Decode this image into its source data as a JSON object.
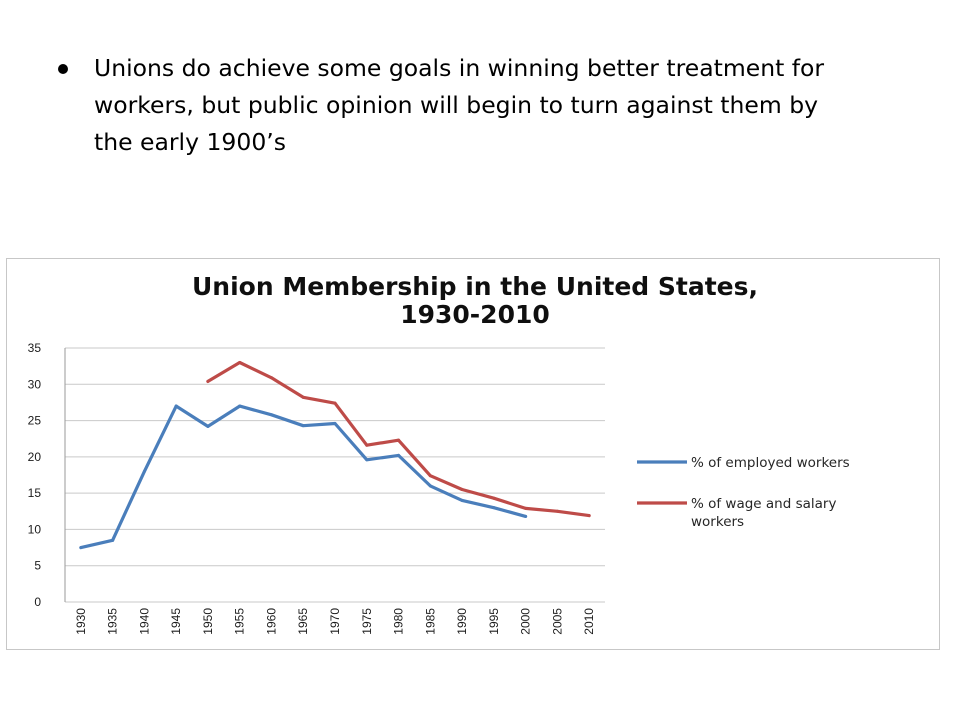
{
  "slide": {
    "bullet_text": "Unions do achieve some goals in winning better treatment for workers, but public opinion will begin to turn against them by the early 1900’s"
  },
  "chart_data": {
    "type": "line",
    "title_line1": "Union Membership in the United States,",
    "title_line2": "1930-2010",
    "xlabel": "",
    "ylabel": "",
    "ylim": [
      0,
      35
    ],
    "yticks": [
      "0",
      "5",
      "10",
      "15",
      "20",
      "25",
      "30",
      "35"
    ],
    "categories": [
      "1930",
      "1935",
      "1940",
      "1945",
      "1950",
      "1955",
      "1960",
      "1965",
      "1970",
      "1975",
      "1980",
      "1985",
      "1990",
      "1995",
      "2000",
      "2005",
      "2010"
    ],
    "grid": true,
    "legend_position": "right",
    "series": [
      {
        "name": "% of employed workers",
        "color": "#4a7ebb",
        "values": [
          7.5,
          8.5,
          18,
          27,
          24.2,
          27,
          25.8,
          24.3,
          24.6,
          19.6,
          20.2,
          16,
          14,
          13,
          11.8,
          null,
          null
        ]
      },
      {
        "name": "% of wage and salary workers",
        "name_line1": "% of wage and salary",
        "name_line2": "workers",
        "color": "#be4b48",
        "values": [
          null,
          null,
          null,
          null,
          30.4,
          33,
          30.9,
          28.2,
          27.4,
          21.6,
          22.3,
          17.4,
          15.5,
          14.3,
          12.9,
          12.5,
          11.9
        ]
      }
    ]
  }
}
